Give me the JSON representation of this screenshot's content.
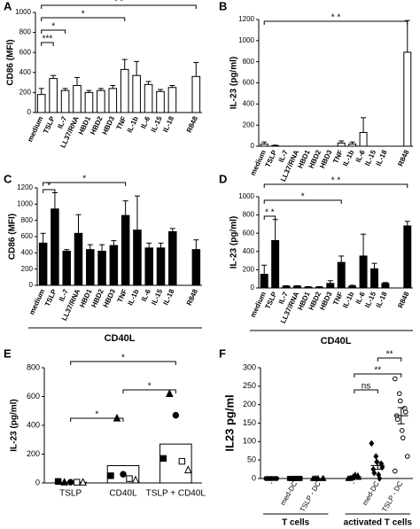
{
  "chart_data": [
    {
      "type": "bar",
      "panel": "A",
      "ylabel": "CD86 (MFI)",
      "categories": [
        "medium",
        "TSLP",
        "IL-7",
        "LL37/RNA",
        "HBD1",
        "HBD2",
        "HBD3",
        "TNF",
        "IL-1b",
        "IL-6",
        "IL-15",
        "IL-18",
        null,
        "R848"
      ],
      "values": [
        180,
        340,
        220,
        270,
        200,
        220,
        240,
        430,
        370,
        280,
        210,
        250,
        null,
        360
      ],
      "errors": [
        60,
        30,
        20,
        80,
        20,
        20,
        30,
        100,
        140,
        30,
        20,
        20,
        null,
        140
      ],
      "fill": "#ffffff",
      "ylim": [
        0,
        1000
      ],
      "yticks": [
        0,
        200,
        400,
        600,
        800,
        1000
      ],
      "brackets": [
        {
          "from": "medium",
          "to": "TSLP",
          "label": "***"
        },
        {
          "from": "medium",
          "to": "IL-7",
          "label": "*"
        },
        {
          "from": "medium",
          "to": "TNF",
          "label": "*"
        },
        {
          "from": "medium",
          "to": "R848",
          "label": "* *"
        }
      ]
    },
    {
      "type": "bar",
      "panel": "B",
      "ylabel": "IL-23 (pg/ml)",
      "categories": [
        "medium",
        "TSLP",
        "IL-7",
        "LL37/RNA",
        "HBD1",
        "HBD2",
        "HBD3",
        "TNF",
        "IL-1b",
        "IL-6",
        "IL-15",
        "IL-18",
        null,
        "R848"
      ],
      "values": [
        20,
        5,
        0,
        0,
        0,
        0,
        0,
        30,
        20,
        130,
        0,
        0,
        null,
        890
      ],
      "errors": [
        20,
        5,
        0,
        0,
        0,
        0,
        0,
        20,
        20,
        140,
        0,
        0,
        null,
        300
      ],
      "fill": "#ffffff",
      "ylim": [
        0,
        1200
      ],
      "yticks": [
        0,
        200,
        400,
        600,
        800,
        1000,
        1200
      ],
      "brackets": [
        {
          "from": "medium",
          "to": "R848",
          "label": "* *"
        }
      ]
    },
    {
      "type": "bar",
      "panel": "C",
      "ylabel": "CD86 (MFI)",
      "xlabel": "CD40L",
      "categories": [
        "medium",
        "TSLP",
        "IL-7",
        "LL37/RNA",
        "HBD1",
        "HBD2",
        "HBD3",
        "TNF",
        "IL-1b",
        "IL-6",
        "IL-15",
        "IL-18",
        null,
        "R848"
      ],
      "values": [
        520,
        940,
        420,
        640,
        440,
        420,
        490,
        860,
        680,
        460,
        460,
        660,
        null,
        440
      ],
      "errors": [
        120,
        200,
        20,
        230,
        60,
        80,
        60,
        180,
        420,
        60,
        60,
        40,
        null,
        120
      ],
      "fill": "#000000",
      "ylim": [
        0,
        1200
      ],
      "yticks": [
        0,
        200,
        400,
        600,
        800,
        1000,
        1200
      ],
      "brackets": [
        {
          "from": "medium",
          "to": "TSLP",
          "label": "*"
        },
        {
          "from": "medium",
          "to": "TNF",
          "label": "*"
        }
      ]
    },
    {
      "type": "bar",
      "panel": "D",
      "ylabel": "IL-23 (pg/ml)",
      "xlabel": "CD40L",
      "categories": [
        "medium",
        "TSLP",
        "IL-7",
        "LL37/RNA",
        "HBD1",
        "HBD2",
        "HBD3",
        "TNF",
        "IL-1b",
        "IL-6",
        "IL-15",
        "IL-18",
        null,
        "R848"
      ],
      "values": [
        150,
        520,
        20,
        20,
        10,
        10,
        50,
        280,
        20,
        350,
        210,
        50,
        null,
        680
      ],
      "errors": [
        100,
        230,
        5,
        5,
        5,
        5,
        30,
        70,
        10,
        240,
        60,
        10,
        null,
        50
      ],
      "fill": "#000000",
      "ylim": [
        0,
        1000
      ],
      "yticks": [
        0,
        200,
        400,
        600,
        800,
        1000
      ],
      "brackets": [
        {
          "from": "medium",
          "to": "TSLP",
          "label": "* *"
        },
        {
          "from": "medium",
          "to": "TNF",
          "label": "*"
        },
        {
          "from": "medium",
          "to": "R848",
          "label": "* *"
        }
      ]
    },
    {
      "type": "bar_scatter",
      "panel": "E",
      "ylabel": "IL-23 (pg/ml)",
      "categories": [
        "TSLP",
        "CD40L",
        "TSLP + CD40L"
      ],
      "values": [
        5,
        120,
        270
      ],
      "fill": "#ffffff",
      "series": [
        {
          "marker": "square",
          "filled": true,
          "values": [
            10,
            50,
            170
          ]
        },
        {
          "marker": "triangle",
          "filled": true,
          "values": [
            5,
            450,
            620
          ]
        },
        {
          "marker": "circle",
          "filled": true,
          "values": [
            5,
            60,
            470
          ]
        },
        {
          "marker": "square",
          "filled": false,
          "values": [
            5,
            30,
            150
          ]
        },
        {
          "marker": "triangle",
          "filled": false,
          "values": [
            5,
            20,
            90
          ]
        }
      ],
      "ylim": [
        0,
        800
      ],
      "yticks": [
        0,
        200,
        400,
        600,
        800
      ],
      "brackets": [
        {
          "from": "TSLP",
          "to": "CD40L",
          "label": "*"
        },
        {
          "from": "CD40L",
          "to": "TSLP + CD40L",
          "label": "*"
        },
        {
          "from": "TSLP",
          "to": "TSLP + CD40L",
          "label": "*"
        }
      ]
    },
    {
      "type": "dot_plot",
      "panel": "F",
      "ylabel": "IL23 pg/ml",
      "ylim": [
        0,
        300
      ],
      "yticks": [
        0,
        50,
        100,
        150,
        200,
        250,
        300
      ],
      "groups": [
        {
          "label": "T cells",
          "categories": [
            {
              "label": "-",
              "marker": "circle",
              "filled": true,
              "points": [
                0,
                0,
                0,
                0,
                0,
                0,
                0,
                0
              ],
              "mean": 0,
              "sem": 0
            },
            {
              "label": "med-DC",
              "marker": "square",
              "filled": true,
              "points": [
                0,
                0,
                0,
                0,
                0,
                0,
                0,
                0,
                0
              ],
              "mean": 0,
              "sem": 0
            },
            {
              "label": "TSLP - DC",
              "marker": "triangle",
              "filled": true,
              "points": [
                0,
                0,
                0,
                0,
                0,
                0,
                0
              ],
              "mean": 0,
              "sem": 0
            }
          ],
          "brackets": []
        },
        {
          "label": "activated T cells",
          "categories": [
            {
              "label": "-",
              "marker": "triangle",
              "filled": true,
              "points": [
                0,
                2,
                5,
                8,
                3,
                0,
                1,
                10
              ],
              "mean": 5,
              "sem": 2
            },
            {
              "label": "med-DC",
              "marker": "diamond",
              "filled": true,
              "points": [
                95,
                60,
                45,
                40,
                30,
                25,
                15,
                10,
                0
              ],
              "mean": 35,
              "sem": 10
            },
            {
              "label": "TSLP - DC",
              "marker": "circle",
              "filled": false,
              "points": [
                270,
                230,
                210,
                190,
                180,
                170,
                160,
                130,
                110,
                60,
                20
              ],
              "mean": 170,
              "sem": 22
            }
          ],
          "brackets": [
            {
              "from": "-",
              "to": "med-DC",
              "label": "ns"
            },
            {
              "from": "-",
              "to": "TSLP - DC",
              "label": "**"
            },
            {
              "from": "med-DC",
              "to": "TSLP - DC",
              "label": "**"
            }
          ]
        }
      ]
    }
  ]
}
